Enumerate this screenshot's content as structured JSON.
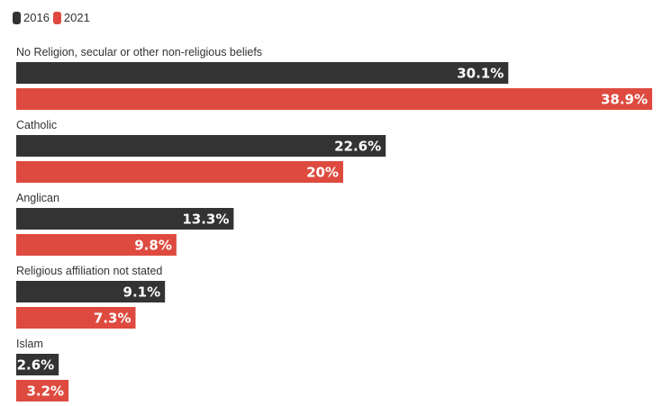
{
  "chart_data": {
    "type": "bar",
    "orientation": "horizontal",
    "categories": [
      "No Religion, secular or other non-religious beliefs",
      "Catholic",
      "Anglican",
      "Religious affiliation not stated",
      "Islam"
    ],
    "series": [
      {
        "name": "2016",
        "color": "#333333",
        "values": [
          30.1,
          22.6,
          13.3,
          9.1,
          2.6
        ],
        "labels": [
          "30.1%",
          "22.6%",
          "13.3%",
          "9.1%",
          "2.6%"
        ]
      },
      {
        "name": "2021",
        "color": "#de4a3f",
        "values": [
          38.9,
          20,
          9.8,
          7.3,
          3.2
        ],
        "labels": [
          "38.9%",
          "20%",
          "9.8%",
          "7.3%",
          "3.2%"
        ]
      }
    ],
    "xlim": [
      0,
      38.9
    ],
    "grid": false,
    "legend": "top-left"
  }
}
